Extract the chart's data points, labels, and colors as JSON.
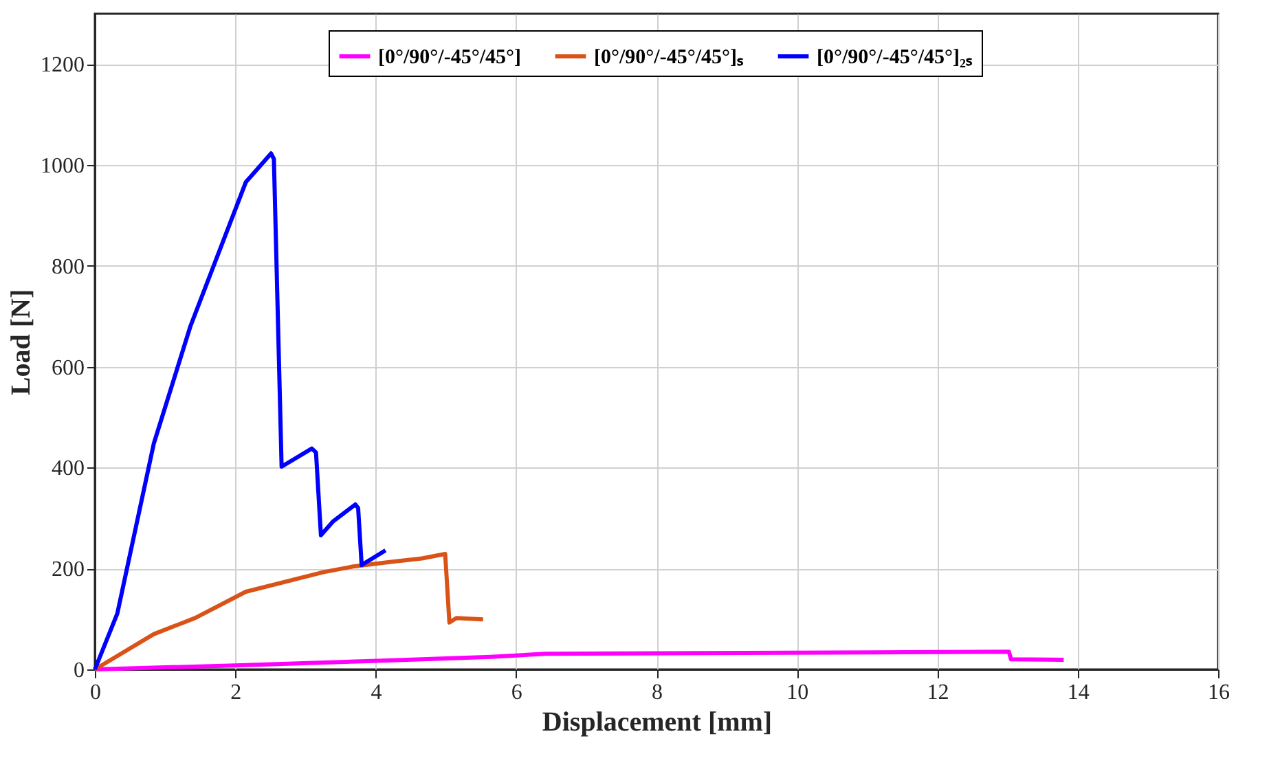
{
  "chart_data": {
    "type": "line",
    "xlabel": "Displacement [mm]",
    "ylabel": "Load [N]",
    "xlim": [
      0,
      16
    ],
    "xticks": [
      0,
      2,
      4,
      6,
      8,
      10,
      12,
      14,
      16
    ],
    "ylim": [
      0,
      1300
    ],
    "yticks": [
      0,
      200,
      400,
      600,
      800,
      1000,
      1200
    ],
    "grid": true,
    "legend": "top",
    "marker": "none",
    "line_style": "solid",
    "series": [
      {
        "name": "[0°/90°/-45°/45°]",
        "color": "#ff00ff",
        "x": [
          0,
          2.0,
          4.03,
          5.64,
          6.42,
          13.02,
          13.05,
          13.8
        ],
        "values": [
          0,
          8,
          17,
          25,
          31,
          35,
          20,
          19
        ]
      },
      {
        "name": "[0°/90°/-45°/45°]ₛ",
        "color": "#d95319",
        "x": [
          0,
          0.84,
          1.43,
          2.15,
          3.26,
          3.68,
          4.2,
          4.66,
          4.99,
          5.05,
          5.15,
          5.53
        ],
        "values": [
          0,
          70,
          102,
          154,
          193,
          204,
          213,
          220,
          229,
          93,
          102,
          99
        ]
      },
      {
        "name": "[0°/90°/-45°/45°]₂ₛ",
        "color": "#0000ff",
        "x": [
          0,
          0.32,
          0.84,
          1.36,
          2.15,
          2.51,
          2.55,
          2.66,
          3.09,
          3.15,
          3.22,
          3.39,
          3.71,
          3.75,
          3.8,
          4.14
        ],
        "values": [
          0,
          111,
          448,
          680,
          966,
          1023,
          1012,
          402,
          438,
          430,
          266,
          293,
          327,
          320,
          207,
          236
        ]
      }
    ]
  }
}
